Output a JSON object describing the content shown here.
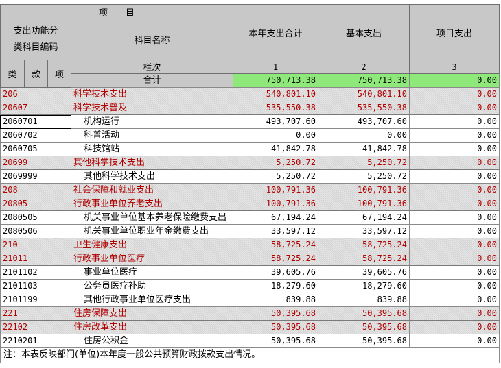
{
  "header": {
    "project": "项　　目",
    "func_code": "支出功能分类科目编码",
    "func_code_l1": "支出功能分",
    "func_code_l2": "类科目编码",
    "subject_name": "科目名称",
    "col_lei": "类",
    "col_kuan": "款",
    "col_xiang": "项",
    "row_index": "栏次",
    "total_label": "合计",
    "col_total": "本年支出合计",
    "col_basic": "基本支出",
    "col_project": "项目支出",
    "idx1": "1",
    "idx2": "2",
    "idx3": "3"
  },
  "total": {
    "v1": "750,713.38",
    "v2": "750,713.38",
    "v3": "0.00"
  },
  "rows": [
    {
      "code": "206",
      "name": "科学技术支出",
      "v1": "540,801.10",
      "v2": "540,801.10",
      "v3": "0.00",
      "kind": "cat"
    },
    {
      "code": "20607",
      "name": "科学技术普及",
      "v1": "535,550.38",
      "v2": "535,550.38",
      "v3": "0.00",
      "kind": "cat"
    },
    {
      "code": "2060701",
      "name": "机构运行",
      "v1": "493,707.60",
      "v2": "493,707.60",
      "v3": "0.00",
      "kind": "item"
    },
    {
      "code": "2060702",
      "name": "科普活动",
      "v1": "0.00",
      "v2": "0.00",
      "v3": "0.00",
      "kind": "item"
    },
    {
      "code": "2060705",
      "name": "科技馆站",
      "v1": "41,842.78",
      "v2": "41,842.78",
      "v3": "0.00",
      "kind": "item"
    },
    {
      "code": "20699",
      "name": "其他科学技术支出",
      "v1": "5,250.72",
      "v2": "5,250.72",
      "v3": "0.00",
      "kind": "cat"
    },
    {
      "code": "2069999",
      "name": "其他科学技术支出",
      "v1": "5,250.72",
      "v2": "5,250.72",
      "v3": "0.00",
      "kind": "item"
    },
    {
      "code": "208",
      "name": "社会保障和就业支出",
      "v1": "100,791.36",
      "v2": "100,791.36",
      "v3": "0.00",
      "kind": "cat"
    },
    {
      "code": "20805",
      "name": "行政事业单位养老支出",
      "v1": "100,791.36",
      "v2": "100,791.36",
      "v3": "0.00",
      "kind": "cat"
    },
    {
      "code": "2080505",
      "name": "机关事业单位基本养老保险缴费支出",
      "v1": "67,194.24",
      "v2": "67,194.24",
      "v3": "0.00",
      "kind": "item"
    },
    {
      "code": "2080506",
      "name": "机关事业单位职业年金缴费支出",
      "v1": "33,597.12",
      "v2": "33,597.12",
      "v3": "0.00",
      "kind": "item"
    },
    {
      "code": "210",
      "name": "卫生健康支出",
      "v1": "58,725.24",
      "v2": "58,725.24",
      "v3": "0.00",
      "kind": "cat"
    },
    {
      "code": "21011",
      "name": "行政事业单位医疗",
      "v1": "58,725.24",
      "v2": "58,725.24",
      "v3": "0.00",
      "kind": "cat"
    },
    {
      "code": "2101102",
      "name": "事业单位医疗",
      "v1": "39,605.76",
      "v2": "39,605.76",
      "v3": "0.00",
      "kind": "item"
    },
    {
      "code": "2101103",
      "name": "公务员医疗补助",
      "v1": "18,279.60",
      "v2": "18,279.60",
      "v3": "0.00",
      "kind": "item"
    },
    {
      "code": "2101199",
      "name": "其他行政事业单位医疗支出",
      "v1": "839.88",
      "v2": "839.88",
      "v3": "0.00",
      "kind": "item"
    },
    {
      "code": "221",
      "name": "住房保障支出",
      "v1": "50,395.68",
      "v2": "50,395.68",
      "v3": "0.00",
      "kind": "cat"
    },
    {
      "code": "22102",
      "name": "住房改革支出",
      "v1": "50,395.68",
      "v2": "50,395.68",
      "v3": "0.00",
      "kind": "cat"
    },
    {
      "code": "2210201",
      "name": "住房公积金",
      "v1": "50,395.68",
      "v2": "50,395.68",
      "v3": "0.00",
      "kind": "item"
    }
  ],
  "note": "注：本表反映部门(单位)本年度一般公共预算财政拨款支出情况。"
}
